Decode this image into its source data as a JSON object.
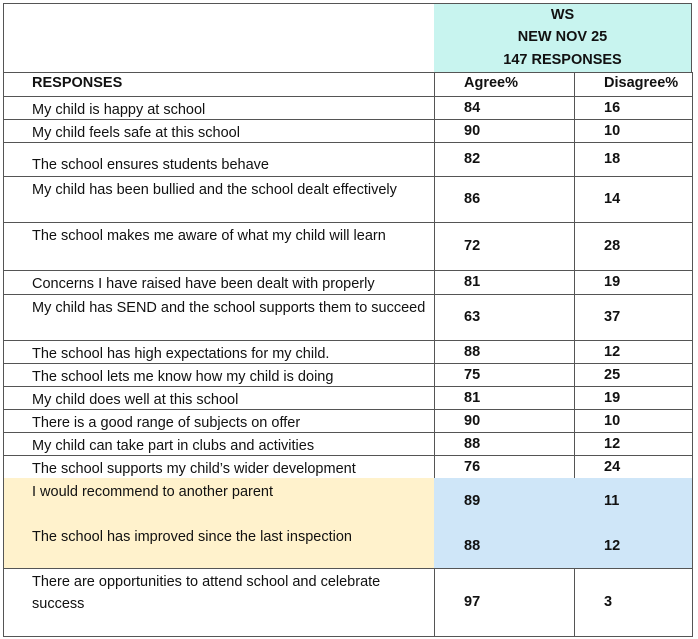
{
  "header": {
    "group": "WS",
    "period": "NEW NOV 25",
    "responses": "147 RESPONSES"
  },
  "table": {
    "columns": [
      "RESPONSES",
      "Agree%",
      "Disagree%"
    ],
    "rows": [
      {
        "response": "My child is happy at school",
        "agree": 84,
        "disagree": 16
      },
      {
        "response": "My child feels safe at this school",
        "agree": 90,
        "disagree": 10
      },
      {
        "response": "The school ensures students behave",
        "agree": 82,
        "disagree": 18
      },
      {
        "response": "My child has been bullied and the school dealt effectively",
        "agree": 86,
        "disagree": 14
      },
      {
        "response": "The school makes me aware of what my child will learn",
        "agree": 72,
        "disagree": 28
      },
      {
        "response": "Concerns I have raised have been dealt with properly",
        "agree": 81,
        "disagree": 19
      },
      {
        "response": "My child has SEND and the school supports them to succeed",
        "agree": 63,
        "disagree": 37
      },
      {
        "response": "The school has high expectations for my child.",
        "agree": 88,
        "disagree": 12
      },
      {
        "response": "The school lets me know how my child is doing",
        "agree": 75,
        "disagree": 25
      },
      {
        "response": "My child does well at this school",
        "agree": 81,
        "disagree": 19
      },
      {
        "response": "There is a good range of subjects on offer",
        "agree": 90,
        "disagree": 10
      },
      {
        "response": "My child can take part in clubs and activities",
        "agree": 88,
        "disagree": 12
      },
      {
        "response": "The school supports my child’s wider development",
        "agree": 76,
        "disagree": 24
      },
      {
        "response": "I would recommend to another parent",
        "agree": 89,
        "disagree": 11,
        "highlight": true
      },
      {
        "response": "The school has improved since the last inspection",
        "agree": 88,
        "disagree": 12,
        "highlight": true
      },
      {
        "response": "There are opportunities to attend school and celebrate success",
        "agree": 97,
        "disagree": 3
      }
    ]
  }
}
